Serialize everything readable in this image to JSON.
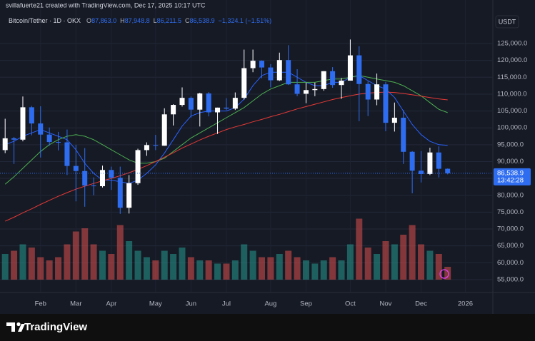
{
  "header": "svillafuerte21 created with TradingView.com, Dec 17, 2025 10:17 UTC",
  "footer": {
    "brand": "TradingView"
  },
  "chart_data": {
    "type": "candlestick",
    "symbol": "Bitcoin/Tether · 1D · OKX",
    "currency": "USDT",
    "legend": [
      {
        "key": "O",
        "value": "87,863.0"
      },
      {
        "key": "H",
        "value": "87,948.8"
      },
      {
        "key": "L",
        "value": "86,211.5"
      },
      {
        "key": "C",
        "value": "86,538.9"
      }
    ],
    "change": "−1,324.1 (−1.51%)",
    "last_price_label": "86,538.9",
    "countdown": "13:42:28",
    "categories": [
      null,
      null,
      null,
      null,
      "Feb",
      null,
      null,
      null,
      "Mar",
      null,
      null,
      null,
      "Apr",
      null,
      null,
      null,
      null,
      "May",
      null,
      null,
      null,
      "Jun",
      null,
      null,
      null,
      "Jul",
      null,
      null,
      null,
      null,
      "Aug",
      null,
      null,
      null,
      "Sep",
      null,
      null,
      null,
      null,
      "Oct",
      null,
      null,
      null,
      "Nov",
      null,
      null,
      null,
      "Dec",
      null,
      null,
      null,
      null,
      "2026",
      null,
      null
    ],
    "ohlc": [
      [
        93400,
        102700,
        92500,
        96900
      ],
      [
        96900,
        97300,
        89300,
        96500
      ],
      [
        96500,
        109300,
        96000,
        106100
      ],
      [
        106100,
        106500,
        97800,
        101300
      ],
      [
        101300,
        106400,
        91200,
        98000
      ],
      [
        98000,
        100100,
        94700,
        95800
      ],
      [
        95800,
        98800,
        93300,
        95700
      ],
      [
        95700,
        99500,
        86000,
        88700
      ],
      [
        88700,
        95000,
        78200,
        87200
      ],
      [
        87200,
        94000,
        76600,
        82900
      ],
      [
        82900,
        85300,
        80000,
        82700
      ],
      [
        82700,
        88800,
        82300,
        87500
      ],
      [
        87500,
        88500,
        81600,
        85200
      ],
      [
        85200,
        88500,
        74500,
        76300
      ],
      [
        76300,
        86000,
        74600,
        83600
      ],
      [
        83600,
        93800,
        83100,
        93400
      ],
      [
        93400,
        95700,
        91700,
        94900
      ],
      [
        94900,
        97900,
        93400,
        94700
      ],
      [
        94700,
        105800,
        94700,
        104000
      ],
      [
        104000,
        107000,
        100700,
        106800
      ],
      [
        106800,
        112000,
        106300,
        108900
      ],
      [
        108900,
        109300,
        103100,
        105400
      ],
      [
        105400,
        110400,
        100400,
        110200
      ],
      [
        110200,
        110600,
        103400,
        104600
      ],
      [
        104600,
        106000,
        98200,
        106000
      ],
      [
        106000,
        108800,
        105300,
        105700
      ],
      [
        105700,
        110500,
        105300,
        108900
      ],
      [
        108900,
        123200,
        108400,
        117700
      ],
      [
        117700,
        123200,
        116500,
        119900
      ],
      [
        119900,
        120000,
        114700,
        117900
      ],
      [
        117900,
        118900,
        112000,
        114100
      ],
      [
        114100,
        122300,
        113900,
        120100
      ],
      [
        120100,
        124500,
        112700,
        112900
      ],
      [
        112900,
        117400,
        109400,
        110100
      ],
      [
        110100,
        113400,
        107300,
        111200
      ],
      [
        111200,
        113400,
        109400,
        111500
      ],
      [
        111500,
        116800,
        111000,
        116800
      ],
      [
        116800,
        118000,
        111900,
        112700
      ],
      [
        112700,
        114800,
        108600,
        114000
      ],
      [
        114000,
        126200,
        114000,
        121500
      ],
      [
        121500,
        124200,
        102000,
        113000
      ],
      [
        113000,
        113800,
        103500,
        108400
      ],
      [
        108400,
        116100,
        106700,
        112900
      ],
      [
        112900,
        113600,
        99000,
        101500
      ],
      [
        101500,
        107500,
        98900,
        103000
      ],
      [
        103000,
        105300,
        89300,
        92900
      ],
      [
        92900,
        93100,
        80600,
        87300
      ],
      [
        87300,
        93100,
        83800,
        86300
      ],
      [
        86300,
        94100,
        86000,
        92700
      ],
      [
        92700,
        94500,
        85300,
        87863
      ],
      [
        87863.0,
        87948.8,
        86211.5,
        86538.9
      ],
      null,
      null,
      null,
      null
    ],
    "volume": [
      40,
      45,
      55,
      50,
      35,
      30,
      35,
      55,
      75,
      80,
      55,
      45,
      40,
      85,
      60,
      45,
      35,
      30,
      45,
      40,
      50,
      35,
      30,
      30,
      25,
      25,
      30,
      55,
      45,
      35,
      35,
      40,
      45,
      35,
      30,
      25,
      30,
      35,
      30,
      55,
      95,
      50,
      40,
      60,
      55,
      70,
      85,
      55,
      45,
      40,
      20,
      null,
      null,
      null,
      null
    ],
    "moving_averages": [
      {
        "color": "#2962ff",
        "values": [
          95000,
          96000,
          97500,
          98500,
          99500,
          98500,
          97500,
          96500,
          93500,
          89500,
          86500,
          84500,
          84500,
          84000,
          83500,
          84500,
          86500,
          89000,
          92500,
          96500,
          100500,
          103500,
          104500,
          105000,
          105000,
          105000,
          106000,
          108500,
          112500,
          115500,
          116500,
          116500,
          116500,
          115000,
          113500,
          112500,
          112500,
          113500,
          113500,
          115000,
          115500,
          114000,
          112500,
          111500,
          109000,
          105000,
          101000,
          98000,
          96000,
          95000,
          94800,
          null,
          null,
          null,
          null
        ]
      },
      {
        "color": "#4caf50",
        "values": [
          83300,
          85500,
          88000,
          90500,
          93000,
          95000,
          96500,
          97500,
          98000,
          97500,
          96500,
          95000,
          93500,
          92000,
          90500,
          89500,
          89500,
          90000,
          91000,
          93000,
          95000,
          97000,
          98500,
          100000,
          101500,
          103000,
          104500,
          106000,
          108000,
          110000,
          111500,
          112500,
          113500,
          113500,
          113500,
          113500,
          114000,
          114500,
          114500,
          115000,
          115500,
          115000,
          114500,
          114000,
          113500,
          112500,
          111000,
          109500,
          107500,
          105500,
          104500,
          null,
          null,
          null,
          null
        ]
      },
      {
        "color": "#e53935",
        "values": [
          72300,
          73500,
          74800,
          76000,
          77300,
          78500,
          79700,
          80800,
          81800,
          82700,
          83500,
          84300,
          85000,
          85800,
          86700,
          87700,
          88800,
          90000,
          91300,
          92600,
          94000,
          95200,
          96400,
          97500,
          98500,
          99500,
          100300,
          101000,
          101800,
          102500,
          103300,
          104000,
          104800,
          105600,
          106300,
          107000,
          107700,
          108400,
          109000,
          109500,
          110000,
          110300,
          110500,
          110600,
          110500,
          110200,
          109800,
          109400,
          109000,
          108600,
          108300,
          null,
          null,
          null,
          null
        ]
      }
    ],
    "up_color": "#ffffff",
    "down_color": "#2f6df0",
    "volume_up_color": "#26a69a",
    "volume_down_color": "#ef5350",
    "ylim": [
      51600,
      134950
    ],
    "yticks": [
      {
        "value": 55000,
        "label": "55,000.0"
      },
      {
        "value": 60000,
        "label": "60,000.0"
      },
      {
        "value": 65000,
        "label": "65,000.0"
      },
      {
        "value": 70000,
        "label": "70,000.0"
      },
      {
        "value": 75000,
        "label": "75,000.0"
      },
      {
        "value": 80000,
        "label": "80,000.0"
      },
      {
        "value": 85000,
        "label": "85,000.0"
      },
      {
        "value": 90000,
        "label": "90,000.0"
      },
      {
        "value": 95000,
        "label": "95,000.0"
      },
      {
        "value": 100000,
        "label": "100,000.0"
      },
      {
        "value": 105000,
        "label": "105,000.0"
      },
      {
        "value": 110000,
        "label": "110,000.0"
      },
      {
        "value": 115000,
        "label": "115,000.0"
      },
      {
        "value": 120000,
        "label": "120,000.0"
      },
      {
        "value": 125000,
        "label": "125,000.0"
      }
    ],
    "grid": true
  }
}
